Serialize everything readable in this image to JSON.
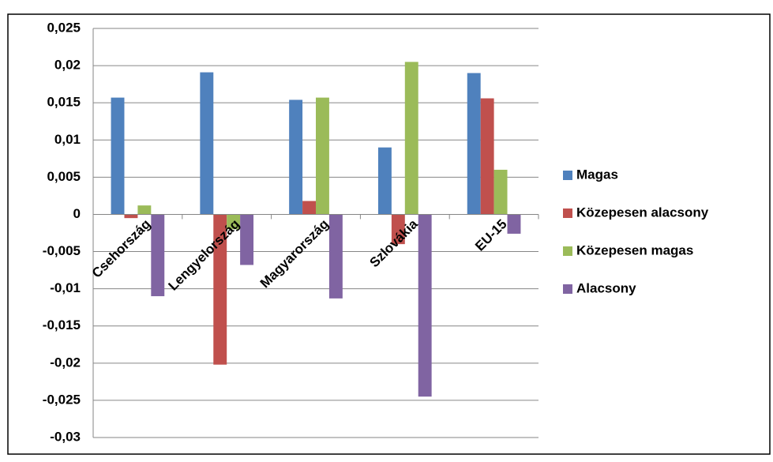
{
  "chart_data": {
    "type": "bar",
    "categories": [
      "Csehország",
      "Lengyelország",
      "Magyarország",
      "Szlovákia",
      "EU-15"
    ],
    "series": [
      {
        "name": "Magas",
        "color": "#4f81bd",
        "values": [
          0.0157,
          0.0191,
          0.0154,
          0.009,
          0.019
        ]
      },
      {
        "name": "Közepesen alacsony",
        "color": "#c0504d",
        "values": [
          -0.0005,
          -0.0202,
          0.0018,
          -0.004,
          0.0156
        ]
      },
      {
        "name": "Közepesen magas",
        "color": "#9bbb59",
        "values": [
          0.0012,
          -0.002,
          0.0157,
          0.0205,
          0.006
        ]
      },
      {
        "name": "Alacsony",
        "color": "#8064a2",
        "values": [
          -0.011,
          -0.0068,
          -0.0113,
          -0.0245,
          -0.0026
        ]
      }
    ],
    "ylim": [
      -0.03,
      0.025
    ],
    "yticks": [
      {
        "value": -0.03,
        "label": "-0,03"
      },
      {
        "value": -0.025,
        "label": "-0,025"
      },
      {
        "value": -0.02,
        "label": "-0,02"
      },
      {
        "value": -0.015,
        "label": "-0,015"
      },
      {
        "value": -0.01,
        "label": "-0,01"
      },
      {
        "value": -0.005,
        "label": "-0,005"
      },
      0,
      {
        "value": 0.005,
        "label": "0,005"
      },
      {
        "value": 0.01,
        "label": "0,01"
      },
      {
        "value": 0.015,
        "label": "0,015"
      },
      {
        "value": 0.02,
        "label": "0,02"
      },
      {
        "value": 0.025,
        "label": "0,025"
      }
    ],
    "grid": true,
    "legend": "right"
  }
}
